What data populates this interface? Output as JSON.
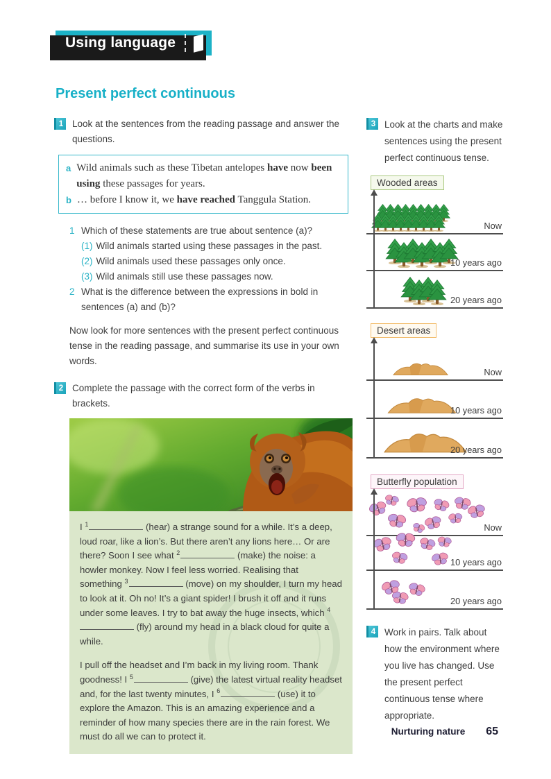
{
  "banner": {
    "title": "Using language"
  },
  "section": {
    "title": "Present perfect continuous"
  },
  "colors": {
    "accent_teal": "#1cb2c7",
    "green_box": "#dbe7cb"
  },
  "icons": {
    "banner_flag": "bookmark-icon",
    "tree": "tree-icon",
    "dune": "dune-icon",
    "butterfly": "butterfly-icon",
    "axis": "up-arrow-axis"
  },
  "ex1": {
    "num": "1",
    "text": "Look at the sentences from the reading passage and answer the questions."
  },
  "quote": {
    "a": {
      "label": "a",
      "p1": "Wild animals such as these Tibetan antelopes ",
      "b1": "have",
      "p2": " now ",
      "b2": "been using",
      "p3": " these passages for years."
    },
    "b": {
      "label": "b",
      "p1": "… before I know it, we ",
      "b1": "have reached",
      "p2": " Tanggula Station."
    }
  },
  "q1": {
    "num": "1",
    "text": "Which of these statements are true about sentence (a)?",
    "options": [
      {
        "num": "(1)",
        "text": "Wild animals started using these passages in the past."
      },
      {
        "num": "(2)",
        "text": "Wild animals used these passages only once."
      },
      {
        "num": "(3)",
        "text": "Wild animals still use these passages now."
      }
    ]
  },
  "q2": {
    "num": "2",
    "text": "What is the difference between the expressions in bold in sentences (a) and (b)?"
  },
  "note": "Now look for more sentences with the present perfect continuous tense in the reading passage, and summarise its use in your own words.",
  "ex2": {
    "num": "2",
    "text": "Complete the passage with the correct form of the verbs in brackets."
  },
  "photo": {
    "alt": "howler monkey in rain forest"
  },
  "passage": {
    "p1": [
      {
        "t": "I "
      },
      {
        "s": "1"
      },
      {
        "bl": true
      },
      {
        "t": " (hear) a strange sound for a while. It’s a deep, loud roar, like a lion’s. But there aren’t any lions here… Or are there? Soon I see what "
      },
      {
        "s": "2"
      },
      {
        "bl": true
      },
      {
        "t": " (make) the noise: a howler monkey. Now I feel less worried. Realising that something "
      },
      {
        "s": "3"
      },
      {
        "bl": true
      },
      {
        "t": " (move) on my shoulder, I turn my head to look at it. Oh no! It’s a giant spider! I brush it off and it runs under some leaves. I try to bat away the huge insects, which "
      },
      {
        "s": "4"
      },
      {
        "bl": true
      },
      {
        "t": " (fly) around my head in a black cloud for quite a while."
      }
    ],
    "p2": [
      {
        "t": "I pull off the headset and I’m back in my living room. Thank goodness! I "
      },
      {
        "s": "5"
      },
      {
        "bl": true
      },
      {
        "t": " (give) the latest virtual reality headset and, for the last twenty minutes, I "
      },
      {
        "s": "6"
      },
      {
        "bl": true
      },
      {
        "t": " (use) it to explore the Amazon. This is an amazing experience and a reminder of how many species there are in the rain forest. We must do all we can to protect it."
      }
    ]
  },
  "ex3": {
    "num": "3",
    "text": "Look at the charts and make sentences using the present perfect continuous tense."
  },
  "charts": [
    {
      "label": "Wooded areas",
      "type": "trees",
      "accent": "#a9c87e",
      "tint": "#f5f9ec",
      "categories": [
        "Now",
        "10 years ago",
        "20 years ago"
      ],
      "rows": [
        {
          "label": "Now",
          "count": 18
        },
        {
          "label": "10 years ago",
          "count": 7
        },
        {
          "label": "20 years ago",
          "count": 4
        }
      ],
      "trend": "increasing over time"
    },
    {
      "label": "Desert areas",
      "type": "dunes",
      "accent": "#f2bc6b",
      "tint": "#fffaf0",
      "categories": [
        "Now",
        "10 years ago",
        "20 years ago"
      ],
      "rows": [
        {
          "label": "Now",
          "size": "small"
        },
        {
          "label": "10 years ago",
          "size": "medium"
        },
        {
          "label": "20 years ago",
          "size": "large"
        }
      ],
      "trend": "decreasing over time"
    },
    {
      "label": "Butterfly population",
      "type": "butterflies",
      "accent": "#e3a8c6",
      "tint": "#fdf5f9",
      "categories": [
        "Now",
        "10 years ago",
        "20 years ago"
      ],
      "rows": [
        {
          "label": "Now",
          "count": 10
        },
        {
          "label": "10 years ago",
          "count": 6
        },
        {
          "label": "20 years ago",
          "count": 3
        }
      ],
      "trend": "increasing over time"
    }
  ],
  "ex4": {
    "num": "4",
    "text": "Work in pairs. Talk about how the environment where you live has changed. Use the present perfect continuous tense where appropriate."
  },
  "footer": {
    "label": "Nurturing nature",
    "page_number": "65"
  }
}
